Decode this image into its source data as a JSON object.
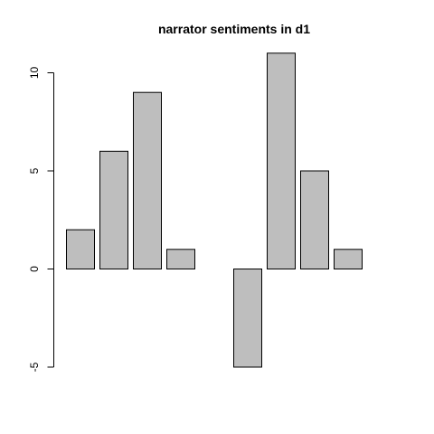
{
  "chart_data": {
    "type": "bar",
    "title": "narrator sentiments in d1",
    "xlabel": "",
    "ylabel": "",
    "values": [
      2,
      6,
      9,
      1,
      0,
      -5,
      11,
      5,
      1,
      0
    ],
    "ylim": [
      -5,
      11
    ],
    "yticks": [
      -5,
      0,
      5,
      10
    ],
    "bar_fill": "#bebebe",
    "bar_stroke": "#000000"
  }
}
